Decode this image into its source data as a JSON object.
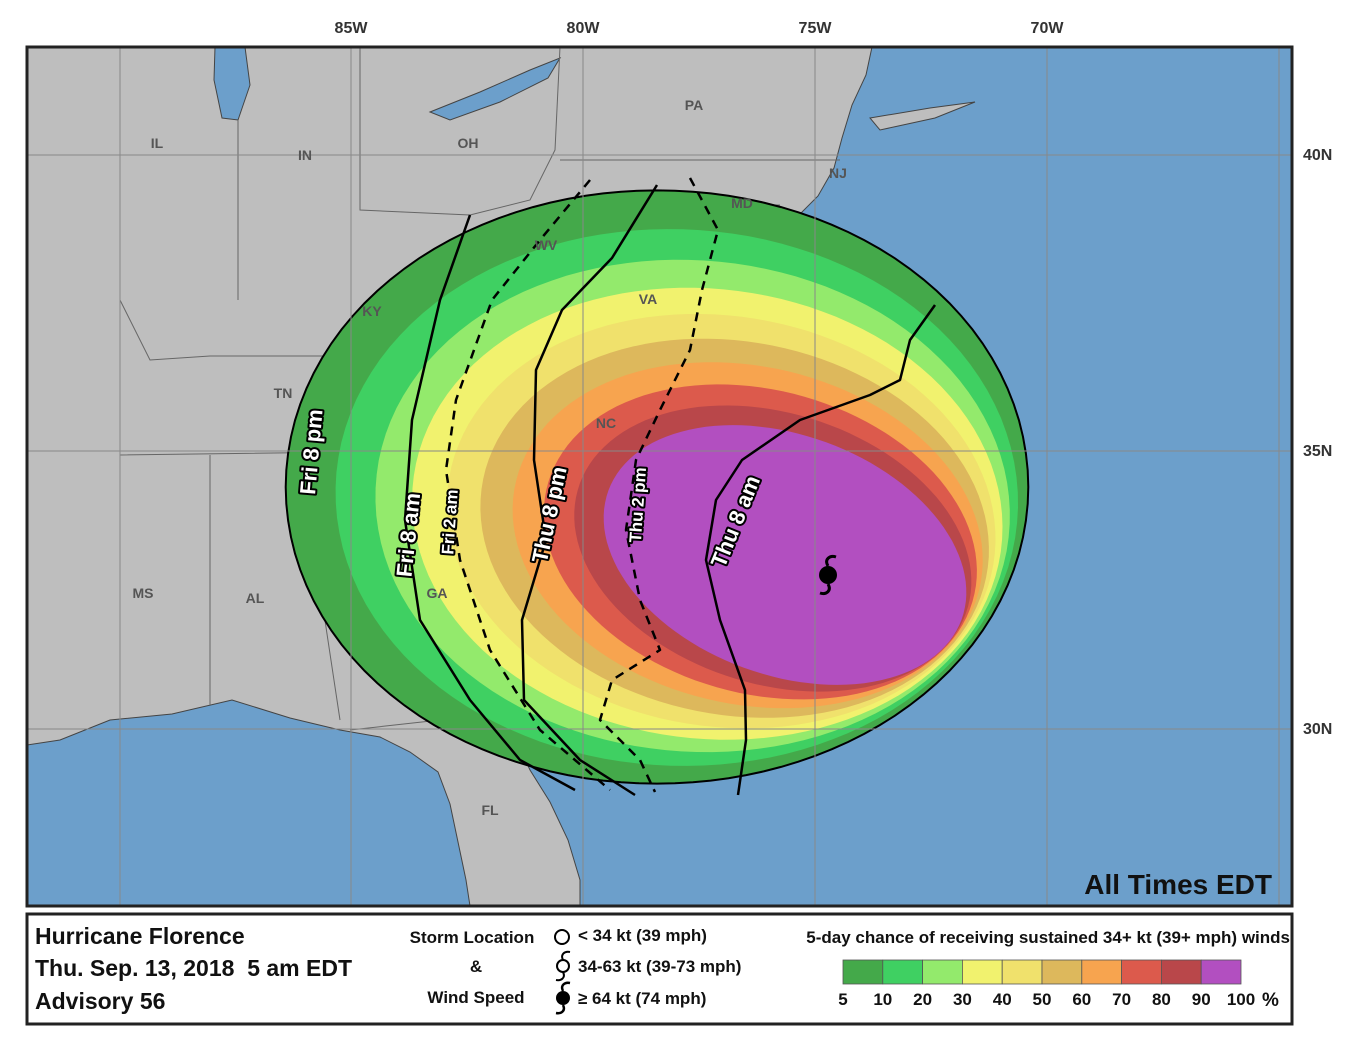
{
  "map": {
    "longitude_labels": [
      "85W",
      "80W",
      "75W",
      "70W"
    ],
    "latitude_labels": [
      "40N",
      "35N",
      "30N"
    ],
    "state_labels": [
      "IL",
      "IN",
      "OH",
      "PA",
      "NJ",
      "MD",
      "WV",
      "VA",
      "KY",
      "TN",
      "NC",
      "MS",
      "AL",
      "GA",
      "FL"
    ],
    "time_labels": [
      "Fri 8 pm",
      "Fri 8 am",
      "Fri 2 am",
      "Thu 8 pm",
      "Thu 2 pm",
      "Thu 8 am"
    ],
    "time_note": "All Times EDT"
  },
  "legend": {
    "title_lines": [
      "Hurricane Florence",
      "Thu. Sep. 13, 2018  5 am EDT",
      "Advisory 56"
    ],
    "storm_key": {
      "lines": [
        "Storm Location",
        "&",
        "Wind Speed"
      ],
      "items": [
        "< 34 kt (39 mph)",
        "34-63 kt (39-73 mph)",
        "≥ 64 kt (74 mph)"
      ]
    },
    "probability": {
      "title": "5-day chance of receiving sustained 34+ kt (39+ mph) winds",
      "ticks": [
        5,
        10,
        20,
        30,
        40,
        50,
        60,
        70,
        80,
        90,
        100
      ],
      "unit": "%",
      "colors": [
        "#44a94a",
        "#3fd062",
        "#93ea6c",
        "#f1f26e",
        "#f0e16c",
        "#ddb85c",
        "#f7a44f",
        "#dc5a4c",
        "#b9474a",
        "#b24fc0"
      ]
    }
  }
}
